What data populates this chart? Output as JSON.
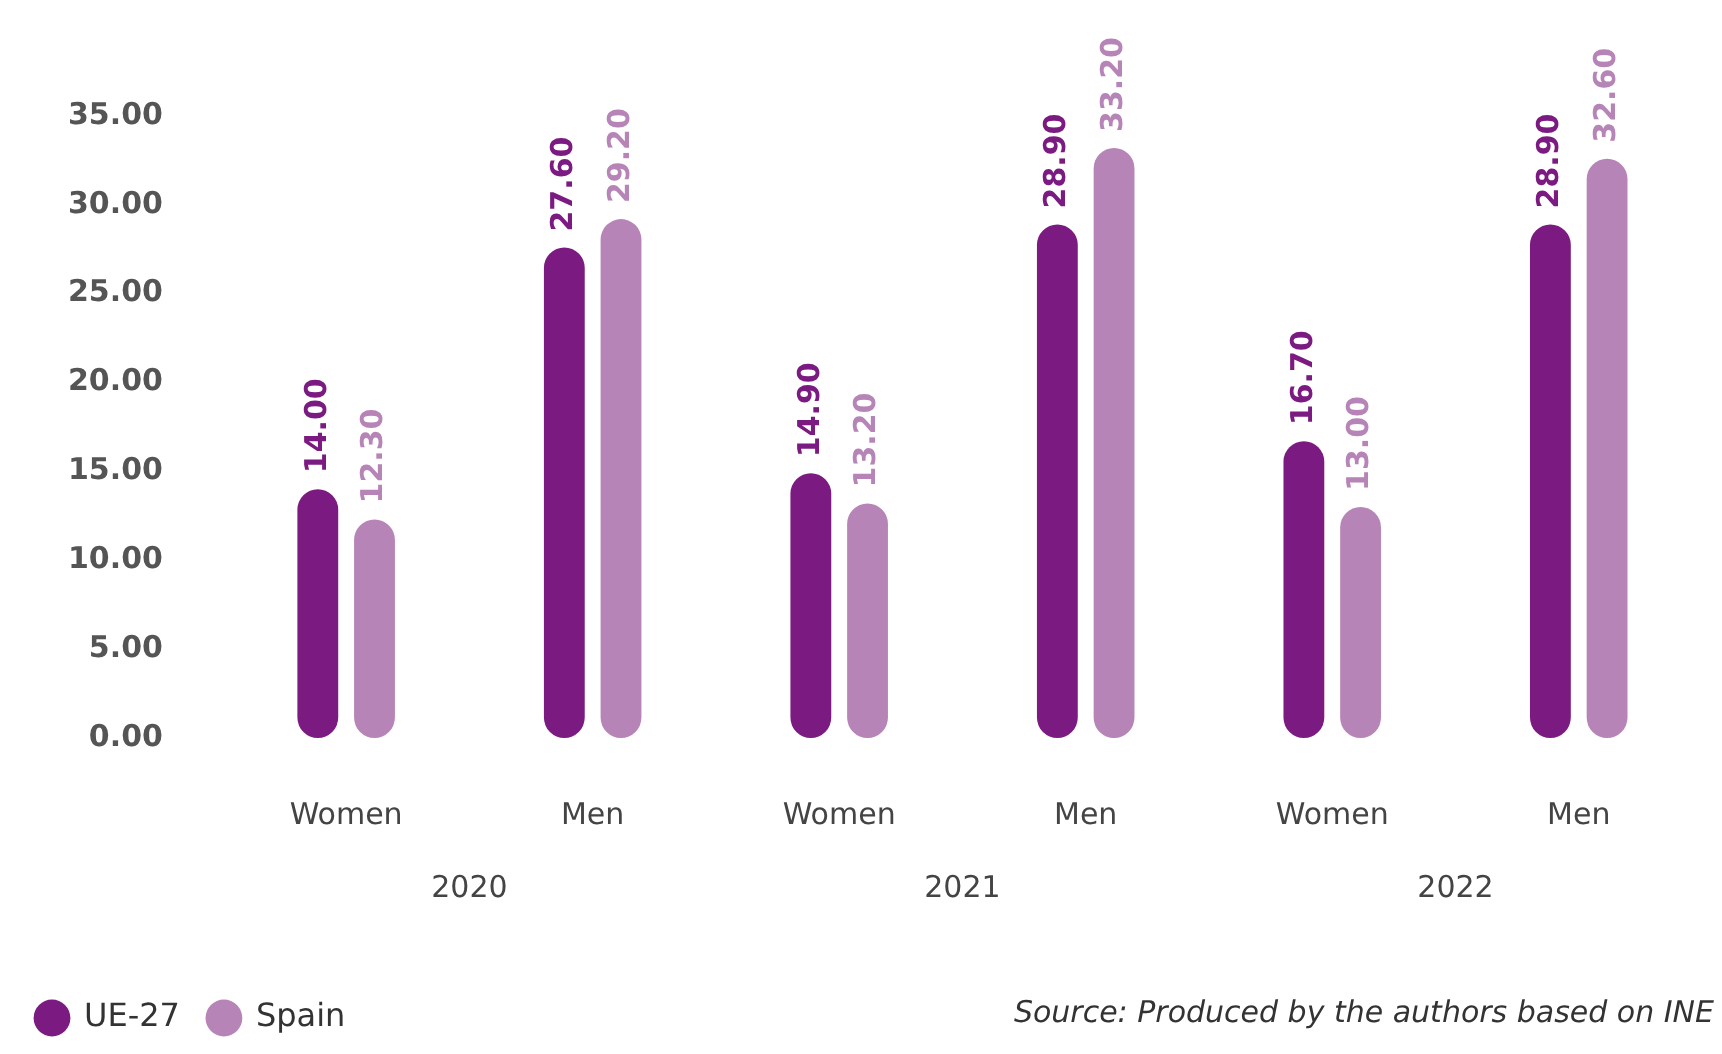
{
  "chart_data": {
    "type": "bar",
    "categories": [
      "Women",
      "Men",
      "Women",
      "Men",
      "Women",
      "Men"
    ],
    "series": [
      {
        "name": "UE-27",
        "color": "#7b1a80",
        "values": [
          14.0,
          27.6,
          14.9,
          28.9,
          16.7,
          28.9
        ],
        "value_labels": [
          "14.00",
          "27.60",
          "14.90",
          "28.90",
          "16.70",
          "28.90"
        ]
      },
      {
        "name": "Spain",
        "color": "#b784b7",
        "values": [
          12.3,
          29.2,
          13.2,
          33.2,
          13.0,
          32.6
        ],
        "value_labels": [
          "12.30",
          "29.20",
          "13.20",
          "33.20",
          "13.00",
          "32.60"
        ]
      }
    ],
    "ylim": [
      0,
      35
    ],
    "yticks": [
      {
        "value": 0,
        "label": "0.00"
      },
      {
        "value": 5,
        "label": "5.00"
      },
      {
        "value": 10,
        "label": "10.00"
      },
      {
        "value": 15,
        "label": "15.00"
      },
      {
        "value": 20,
        "label": "20.00"
      },
      {
        "value": 25,
        "label": "25.00"
      },
      {
        "value": 30,
        "label": "30.00"
      },
      {
        "value": 35,
        "label": "35.00"
      }
    ],
    "grid": false,
    "legend": "bottom left",
    "annotations": [
      "2020",
      "2021",
      "2022",
      "Source: Produced by the authors based on INE"
    ]
  }
}
